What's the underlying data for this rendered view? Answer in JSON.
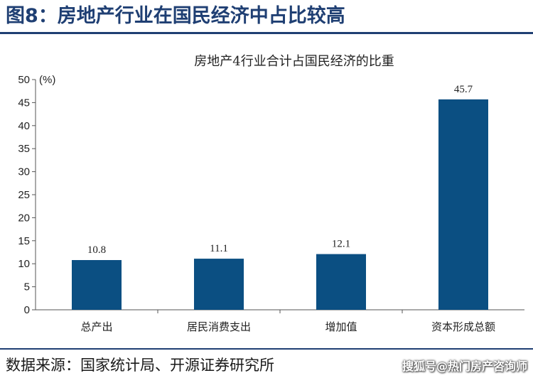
{
  "figure": {
    "title": "图8：房地产行业在国民经济中占比较高",
    "source": "数据来源：国家统计局、开源证券研究所",
    "watermark": "搜狐号@热门房产咨询师"
  },
  "colors": {
    "bar": "#0b4f82",
    "rule": "#1f3f73",
    "axis": "#555555"
  },
  "chart_data": {
    "type": "bar",
    "title": "房地产4行业合计占国民经济的比重",
    "ylabel": "(%)",
    "xlabel": "",
    "categories": [
      "总产出",
      "居民消费支出",
      "增加值",
      "资本形成总额"
    ],
    "values": [
      10.8,
      11.1,
      12.1,
      45.7
    ],
    "value_labels": [
      "10.8",
      "11.1",
      "12.1",
      "45.7"
    ],
    "ylim": [
      0,
      50
    ],
    "yticks": [
      0,
      5,
      10,
      15,
      20,
      25,
      30,
      35,
      40,
      45,
      50
    ],
    "grid": false,
    "legend": "none"
  }
}
